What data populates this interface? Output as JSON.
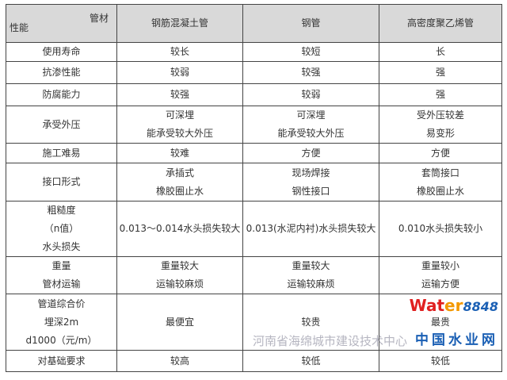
{
  "header": {
    "corner_top": "管材",
    "corner_bottom": "性能",
    "columns": [
      "钢筋混凝土管",
      "钢管",
      "高密度聚乙烯管"
    ]
  },
  "rows": [
    {
      "label": [
        "使用寿命"
      ],
      "cells": [
        [
          "较长"
        ],
        [
          "较短"
        ],
        [
          "长"
        ]
      ]
    },
    {
      "label": [
        "抗渗性能"
      ],
      "cells": [
        [
          "较弱"
        ],
        [
          "较强"
        ],
        [
          "强"
        ]
      ]
    },
    {
      "label": [
        "防腐能力"
      ],
      "cells": [
        [
          "较强"
        ],
        [
          "较弱"
        ],
        [
          "强"
        ]
      ]
    },
    {
      "label": [
        "承受外压"
      ],
      "cells": [
        [
          "可深埋",
          "能承受较大外压"
        ],
        [
          "可深埋",
          "能承受较大外压"
        ],
        [
          "受外压较差",
          "易变形"
        ]
      ]
    },
    {
      "label": [
        "施工难易"
      ],
      "cells": [
        [
          "较难"
        ],
        [
          "方便"
        ],
        [
          "方便"
        ]
      ]
    },
    {
      "label": [
        "接口形式"
      ],
      "cells": [
        [
          "承插式",
          "橡胶圈止水"
        ],
        [
          "现场焊接",
          "钢性接口"
        ],
        [
          "套筒接口",
          "橡胶圈止水"
        ]
      ]
    },
    {
      "label": [
        "粗糙度",
        "（n值）",
        "水头损失"
      ],
      "cells": [
        [
          "0.013～0.014水头损失较大"
        ],
        [
          "0.013(水泥内衬)水头损失较大"
        ],
        [
          "0.010水头损失较小"
        ]
      ]
    },
    {
      "label": [
        "重量",
        "管材运输"
      ],
      "cells": [
        [
          "重量较大",
          "运输较麻烦"
        ],
        [
          "重量较大",
          "运输较麻烦"
        ],
        [
          "重量较小",
          "运输方便"
        ]
      ]
    },
    {
      "label": [
        "管道综合价",
        "埋深2m",
        "d1000（元/m）"
      ],
      "cells": [
        [
          "最便宜"
        ],
        [
          "较贵"
        ],
        [
          "最贵"
        ]
      ]
    },
    {
      "label": [
        "对基础要求"
      ],
      "cells": [
        [
          "较高"
        ],
        [
          "较低"
        ],
        [
          "较低"
        ]
      ]
    }
  ],
  "watermark": {
    "text": "河南省海绵城市建设技术中心",
    "logo_a": "Wat",
    "logo_b": "er",
    "logo_num": "8848",
    "logo_cn": "中国水业网"
  }
}
